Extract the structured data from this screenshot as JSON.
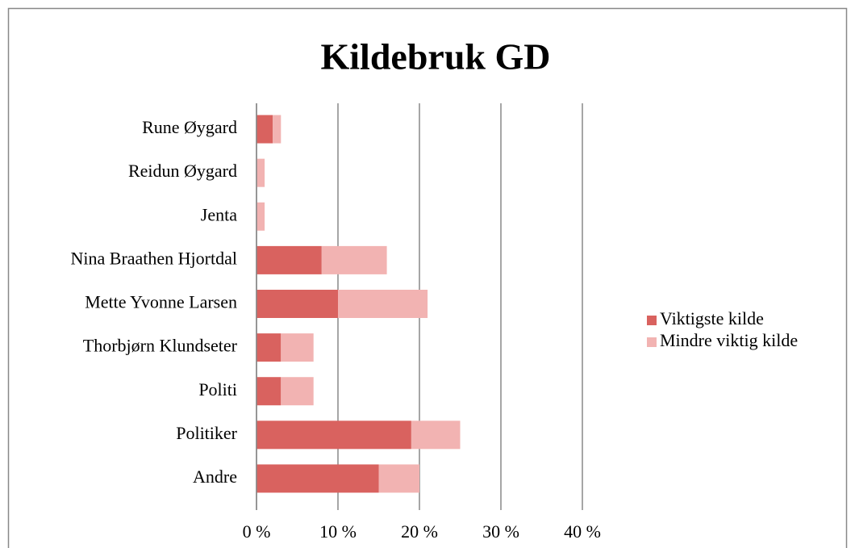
{
  "chart_data": {
    "type": "stacked-barh",
    "title": "Kildebruk GD",
    "categories": [
      "Rune Øygard",
      "Reidun Øygard",
      "Jenta",
      "Nina Braathen Hjortdal",
      "Mette Yvonne Larsen",
      "Thorbjørn Klundseter",
      "Politi",
      "Politiker",
      "Andre"
    ],
    "series": [
      {
        "name": "Viktigste kilde",
        "color": "#d9625f",
        "values": [
          2,
          0,
          0,
          8,
          10,
          3,
          3,
          19,
          15
        ]
      },
      {
        "name": "Mindre viktig kilde",
        "color": "#f2b3b2",
        "values": [
          1,
          1,
          1,
          8,
          11,
          4,
          4,
          6,
          5
        ]
      }
    ],
    "xlim": [
      0,
      40
    ],
    "xticks": [
      {
        "value": 0,
        "label": "0 %"
      },
      {
        "value": 10,
        "label": "10 %"
      },
      {
        "value": 20,
        "label": "20 %"
      },
      {
        "value": 30,
        "label": "30 %"
      },
      {
        "value": 40,
        "label": "40 %"
      }
    ],
    "grid": true,
    "legend": "right"
  }
}
